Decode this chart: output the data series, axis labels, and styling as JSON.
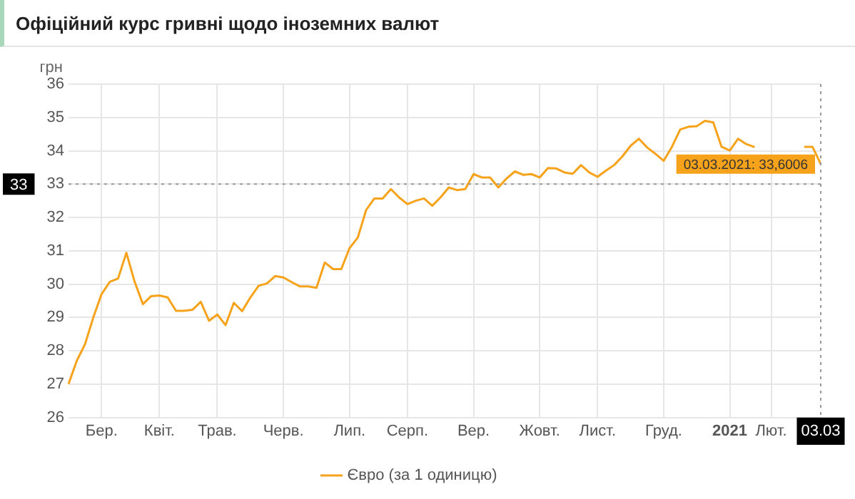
{
  "chart_data": {
    "type": "line",
    "title": "Офіційний курс гривні щодо іноземних валют",
    "ylabel": "грн",
    "categories": [
      null,
      null,
      null,
      null,
      "Бер.",
      null,
      null,
      null,
      null,
      null,
      null,
      "Квіт.",
      null,
      null,
      null,
      null,
      null,
      null,
      "Трав.",
      null,
      null,
      null,
      null,
      null,
      null,
      null,
      "Черв.",
      null,
      null,
      null,
      null,
      null,
      null,
      null,
      "Лип.",
      null,
      null,
      null,
      null,
      null,
      null,
      "Серп.",
      null,
      null,
      null,
      null,
      null,
      null,
      null,
      "Вер.",
      null,
      null,
      null,
      null,
      null,
      null,
      null,
      "Жовт.",
      null,
      null,
      null,
      null,
      null,
      null,
      "Лист.",
      null,
      null,
      null,
      null,
      null,
      null,
      null,
      "Груд.",
      null,
      null,
      null,
      null,
      null,
      null,
      null,
      "2021",
      null,
      null,
      null,
      null,
      "Лют.",
      null,
      null,
      null,
      null,
      null,
      "03.03"
    ],
    "series": [
      {
        "name": "Євро (за 1 одиницю)",
        "color": "#f7a21b",
        "values": [
          27.0,
          27.7,
          28.2,
          29.0,
          29.7,
          30.07,
          30.17,
          30.94,
          30.07,
          29.4,
          29.64,
          29.66,
          29.6,
          29.2,
          29.2,
          29.23,
          29.47,
          28.9,
          29.09,
          28.77,
          29.44,
          29.19,
          29.6,
          29.95,
          30.02,
          30.24,
          30.2,
          30.06,
          29.93,
          29.93,
          29.89,
          30.65,
          30.45,
          30.45,
          31.08,
          31.4,
          32.22,
          32.57,
          32.57,
          32.85,
          32.6,
          32.4,
          32.5,
          32.57,
          32.35,
          32.6,
          32.9,
          32.82,
          32.85,
          33.3,
          33.2,
          33.2,
          32.9,
          33.17,
          33.38,
          33.28,
          33.3,
          33.2,
          33.48,
          33.47,
          33.35,
          33.31,
          33.57,
          33.35,
          33.22,
          33.4,
          33.57,
          33.83,
          34.15,
          34.36,
          34.1,
          33.91,
          33.7,
          34.12,
          34.64,
          34.72,
          34.74,
          34.9,
          34.85,
          34.12,
          34.01,
          34.36,
          34.2,
          34.11,
          null,
          null,
          null,
          null,
          null,
          34.12,
          34.12,
          33.6006
        ]
      }
    ],
    "ylim": [
      26,
      36
    ],
    "yticks": [
      26,
      27,
      28,
      29,
      30,
      31,
      32,
      33,
      34,
      35,
      36
    ],
    "grid": true,
    "legend": "bottom",
    "marker": "none",
    "line_style": "solid",
    "ref_lines": [
      {
        "axis": "y",
        "value": 33,
        "label": "33",
        "line_style": "dotted"
      },
      {
        "axis": "x",
        "value": "03.03",
        "line_style": "dotted"
      }
    ],
    "annotations": [
      {
        "text": "03.03.2021: 33,6006",
        "x": "03.03",
        "y": 33.6006
      }
    ]
  }
}
